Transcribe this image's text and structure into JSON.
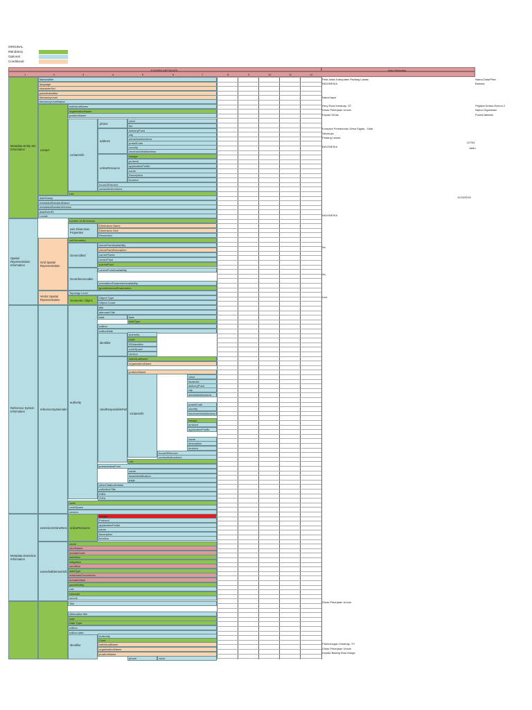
{
  "legend": {
    "title": "ORIGINAL",
    "items": [
      {
        "label": "Mandatory",
        "color": "#8fc34f"
      },
      {
        "label": "Optional",
        "color": "#b6dce4"
      },
      {
        "label": "Conditional",
        "color": "#fad4b0"
      }
    ]
  },
  "header": {
    "elemen_title": "ELEMEN METADATA",
    "isian_title": "Isian Metadata",
    "col_numbers": [
      "1",
      "2",
      "3",
      "4",
      "5",
      "6",
      "7",
      "8",
      "9",
      "10",
      "11",
      "12"
    ]
  },
  "groups": [
    "Metadata Entity Set Information",
    "Spatial Representation Information",
    "Reference System Information",
    "Metadata Extension Information"
  ],
  "sub_labels": [
    "contact",
    "contactInfo",
    "Grid Spatial Representation",
    "axis Dimension Properties",
    "Georectified",
    "Georeferenceable",
    "Vector Spatial Representation",
    "Geometric Object",
    "referenceSystemIdentifier",
    "authority",
    "identifier",
    "citedResponsibleParty",
    "contactInfo",
    "phone",
    "address",
    "onlineResource",
    "extensionOnlineResource",
    "onlineResource",
    "extendedElementInformation",
    "identifier"
  ],
  "rows": [
    "fileIdentifier",
    "language",
    "characterSet",
    "parentIdentifier",
    "hierarchyLevel",
    "hierarchyLevelName",
    "individualName",
    "organisationName",
    "positionName",
    "voice",
    "fax",
    "deliveryPoint",
    "city",
    "administrativeArea",
    "postalCode",
    "country",
    "electronicMailAddress",
    "linkage",
    "protocol",
    "applicationProfile",
    "name",
    "Description",
    "function",
    "hoursOfService",
    "contactInstructions",
    "role",
    "dateStamp",
    "metadataStandardName",
    "metadataStandardVersion",
    "dataSetURI",
    "Locale",
    "number of dimension",
    "Dimension Name",
    "Dimension Size",
    "Resolution",
    "cellGeometry",
    "checkPointAvailability",
    "checkPointDescription",
    "cornerPoints",
    "centerPoint",
    "pointInPixel",
    "controlPointAvailability",
    "orientationParameterAvailability",
    "georeferencedParameters",
    "Topology Level",
    "Object Type",
    "Object Count",
    "title",
    "alternateTitle",
    "date",
    "date",
    "dateType",
    "edition",
    "editionDate",
    "authority",
    "code",
    "RSIdentifier",
    "codeSpace",
    "version",
    "individualName",
    "organisationName",
    "positionName",
    "voice",
    "facsimile",
    "deliveryPoint",
    "city",
    "administrativeArea",
    "postalCode",
    "country",
    "electronicMailAddress",
    "linkage",
    "protocol",
    "applicationProfile",
    "name",
    "description",
    "function",
    "hoursOfService",
    "contactInstructions",
    "role",
    "presentationForm",
    "name",
    "issueIdentification",
    "page",
    "otherCitationDetails",
    "collectiveTitle",
    "ISBN",
    "ISSN",
    "code",
    "codeSpace",
    "version",
    "linkage",
    "Protocol",
    "applicationProfile",
    "name",
    "description",
    "function",
    "name",
    "shortName",
    "domainCode",
    "definition",
    "obligation",
    "condition",
    "dataType",
    "maximumOccurrence",
    "domainValue",
    "parentEntity",
    "rule",
    "rationale",
    "source",
    "Title",
    "Alternative title",
    "date",
    "Date Type",
    "edition",
    "edition date",
    "Authority",
    "Code",
    "individualName",
    "organisationName",
    "positionName",
    "phone",
    "voice"
  ],
  "values": [
    "Peta Jalan Kabupaten Padang Lawas",
    "INDONESIA",
    "Nama Data/Peta",
    "Bahasa",
    "Nama layer",
    "Hery Rizal Harahap, ST",
    "Dinas Pekerjaan Umum",
    "Kepala Dinas",
    "Pejabat Setara Eselon 2",
    "Nama Organisasi",
    "Posisi/Jabatan",
    "Komplek Perkantoran Desa Sigala - Gala",
    "Sibuhuan",
    "Padang Lawas",
    "22763",
    "INDONESIA",
    "Jalan",
    "11/18/2016",
    "INDONESIA",
    "No",
    "No",
    "Line",
    "Dinas Pekerjaan Umum",
    "Parlindungan Harahap, ST",
    "Dinas Pekerjaan Umum",
    "Kepala Bidang Bina Marga"
  ]
}
